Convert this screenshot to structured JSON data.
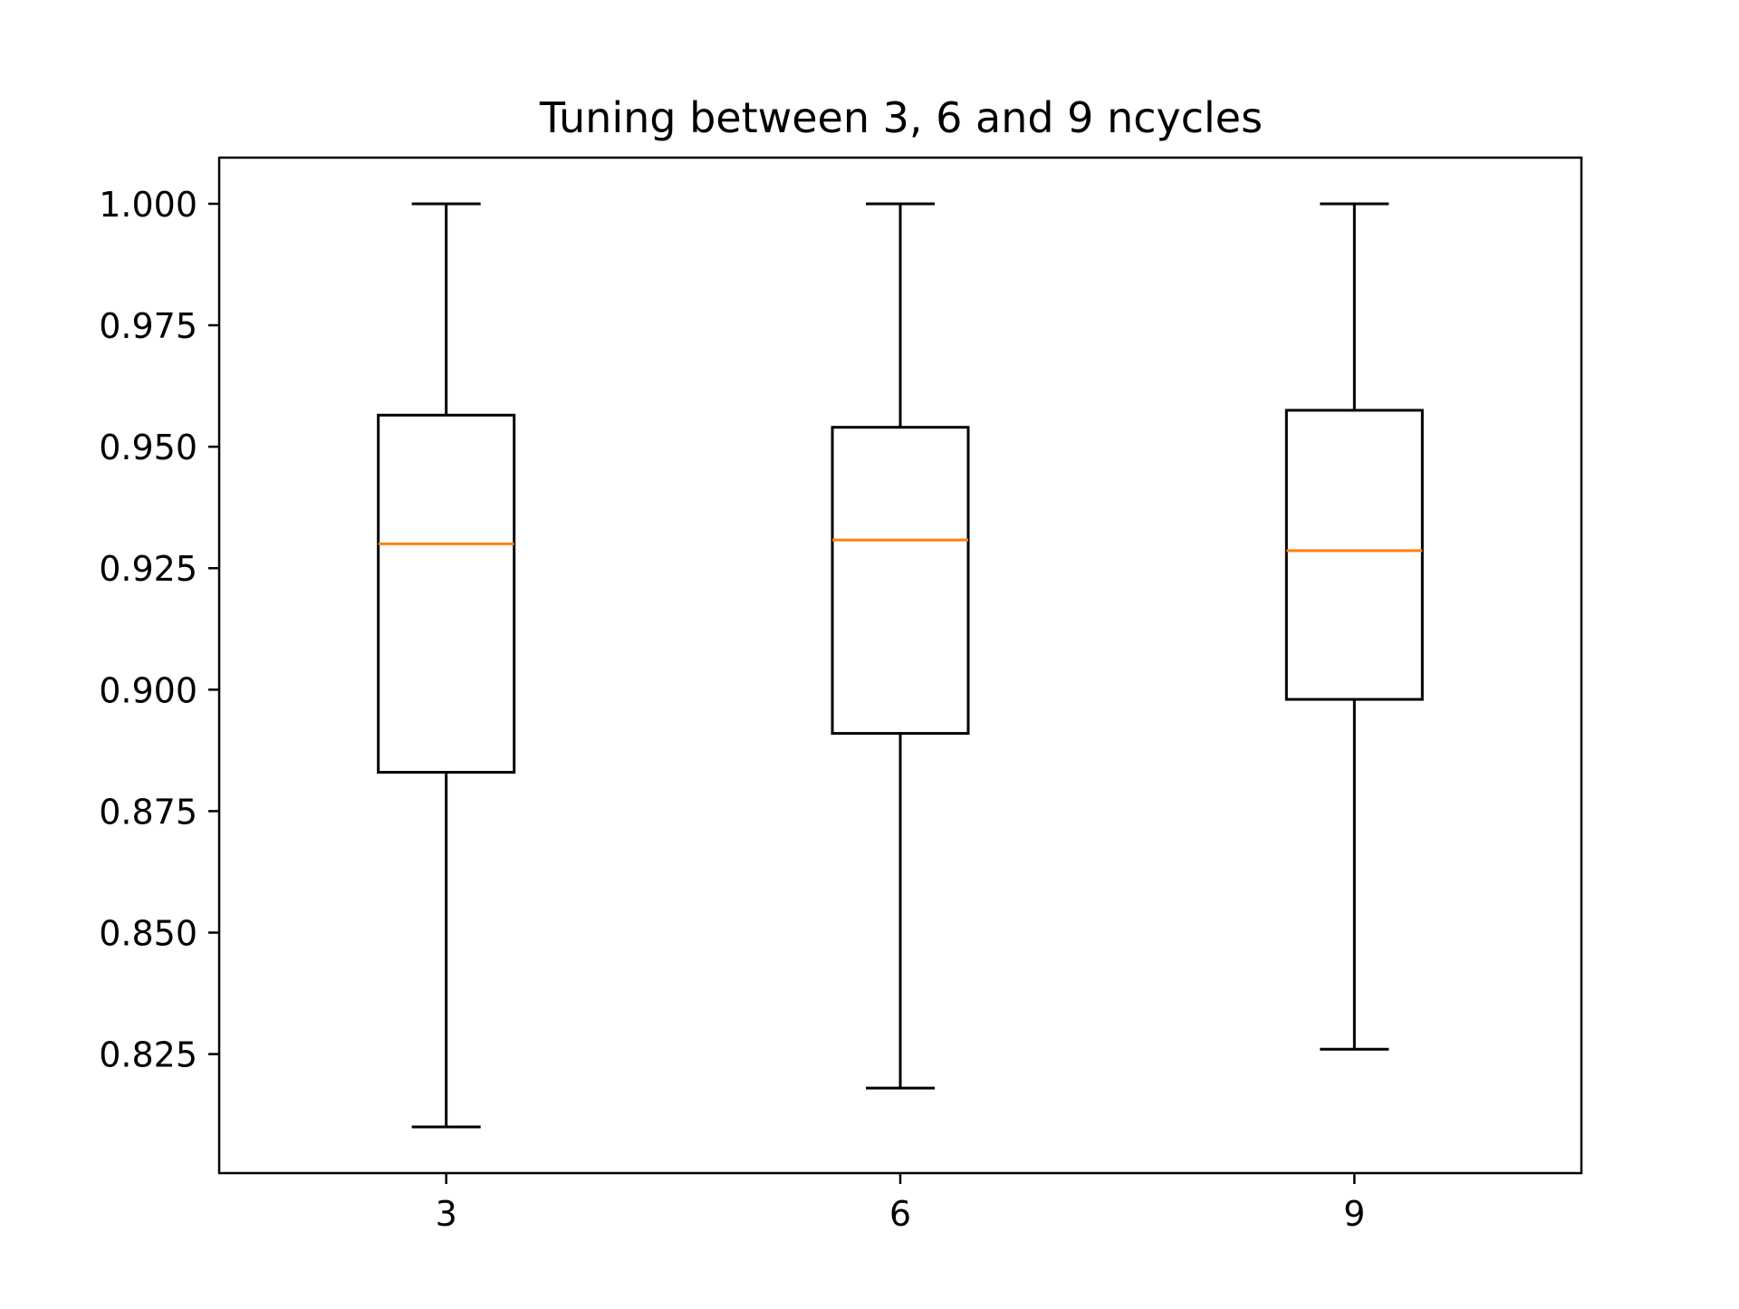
{
  "chart_data": {
    "type": "box",
    "title": "Tuning between 3, 6 and 9 ncycles",
    "xlabel": "",
    "ylabel": "",
    "categories": [
      "3",
      "6",
      "9"
    ],
    "boxes": [
      {
        "category": "3",
        "whisker_low": 0.81,
        "q1": 0.883,
        "median": 0.93,
        "q3": 0.9565,
        "whisker_high": 1.0
      },
      {
        "category": "6",
        "whisker_low": 0.818,
        "q1": 0.891,
        "median": 0.9308,
        "q3": 0.954,
        "whisker_high": 1.0
      },
      {
        "category": "9",
        "whisker_low": 0.826,
        "q1": 0.898,
        "median": 0.9286,
        "q3": 0.9575,
        "whisker_high": 1.0
      }
    ],
    "yticks": [
      0.825,
      0.85,
      0.875,
      0.9,
      0.925,
      0.95,
      0.975,
      1.0
    ],
    "ytick_labels": [
      "0.825",
      "0.850",
      "0.875",
      "0.900",
      "0.925",
      "0.950",
      "0.975",
      "1.000"
    ],
    "ylim": [
      0.8005,
      1.0095
    ],
    "xlim": [
      0.5,
      3.5
    ],
    "grid": false,
    "colors": {
      "box": "#000000",
      "median": "#ff7f0e"
    }
  }
}
